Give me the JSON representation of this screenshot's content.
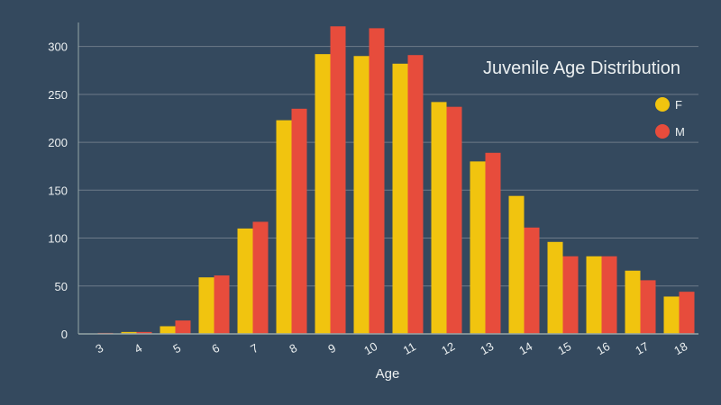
{
  "chart_data": {
    "type": "bar",
    "title": "Juvenile Age Distribution",
    "xlabel": "Age",
    "ylabel": "",
    "categories": [
      "3",
      "4",
      "5",
      "6",
      "7",
      "8",
      "9",
      "10",
      "11",
      "12",
      "13",
      "14",
      "15",
      "16",
      "17",
      "18"
    ],
    "series": [
      {
        "name": "F",
        "color": "#f1c40f",
        "values": [
          0,
          2,
          8,
          59,
          110,
          223,
          292,
          290,
          282,
          242,
          180,
          144,
          96,
          81,
          66,
          39
        ]
      },
      {
        "name": "M",
        "color": "#e74c3c",
        "values": [
          1,
          2,
          14,
          61,
          117,
          235,
          321,
          319,
          291,
          237,
          189,
          111,
          81,
          81,
          56,
          44
        ]
      }
    ],
    "ylim": [
      0,
      325
    ],
    "yticks": [
      0,
      50,
      100,
      150,
      200,
      250,
      300
    ],
    "grid": true,
    "legend_position": "top-right",
    "background_color": "#34495e",
    "text_color": "#ecf0f1",
    "grid_color": "#6c7a89"
  }
}
